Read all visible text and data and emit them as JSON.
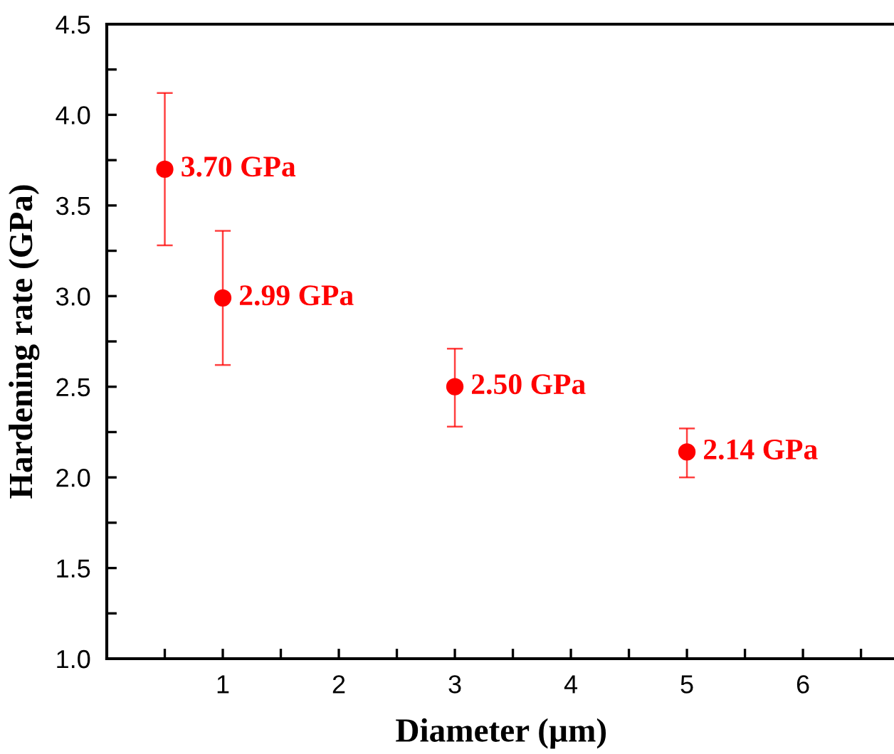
{
  "chart_data": {
    "type": "scatter",
    "xlabel": "Diameter (µm)",
    "ylabel": "Hardening rate (GPa)",
    "xlim": [
      0,
      6.8
    ],
    "ylim": [
      1.0,
      4.5
    ],
    "xticks": [
      {
        "value": 0.5,
        "label": null
      },
      1,
      {
        "value": 1.5,
        "label": null
      },
      2,
      {
        "value": 2.5,
        "label": null
      },
      3,
      {
        "value": 3.5,
        "label": null
      },
      4,
      {
        "value": 4.5,
        "label": null
      },
      5,
      {
        "value": 5.5,
        "label": null
      },
      6,
      {
        "value": 6.5,
        "label": null
      }
    ],
    "yticks": [
      {
        "value": 1,
        "label": "1.0"
      },
      {
        "value": 1.25,
        "label": null
      },
      1.5,
      {
        "value": 1.75,
        "label": null
      },
      {
        "value": 2,
        "label": "2.0"
      },
      {
        "value": 2.25,
        "label": null
      },
      2.5,
      {
        "value": 2.75,
        "label": null
      },
      {
        "value": 3,
        "label": "3.0"
      },
      {
        "value": 3.25,
        "label": null
      },
      3.5,
      {
        "value": 3.75,
        "label": null
      },
      {
        "value": 4,
        "label": "4.0"
      },
      {
        "value": 4.25,
        "label": null
      },
      4.5
    ],
    "x": [
      0.5,
      1,
      3,
      5
    ],
    "series": [
      {
        "color": "#ff0000",
        "values": [
          3.7,
          2.99,
          2.5,
          2.14
        ],
        "errors": [
          [
            3.28,
            4.12
          ],
          [
            2.62,
            3.36
          ],
          [
            2.28,
            2.71
          ],
          [
            2.0,
            2.27
          ]
        ]
      }
    ],
    "marker": "circle",
    "grid": false,
    "legend": false,
    "annotations": [
      {
        "text": "3.70 GPa",
        "x": 0.5,
        "y": 3.7
      },
      {
        "text": "2.99 GPa",
        "x": 1,
        "y": 2.99
      },
      {
        "text": "2.50 GPa",
        "x": 3,
        "y": 2.5
      },
      {
        "text": "2.14 GPa",
        "x": 5,
        "y": 2.14
      }
    ]
  }
}
